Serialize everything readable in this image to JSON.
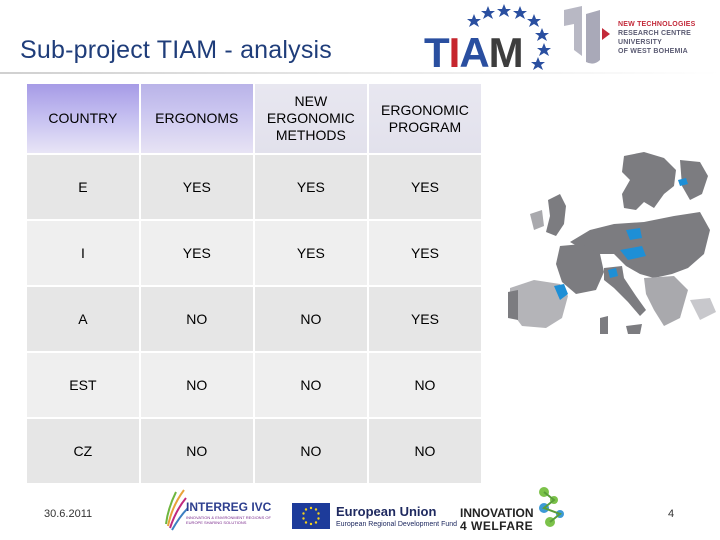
{
  "header": {
    "title": "Sub-project TIAM - analysis",
    "tiam_logo": {
      "t": "T",
      "i": "I",
      "a": "A",
      "m": "M"
    },
    "ntc_logo": {
      "line1": "NEW TECHNOLOGIES",
      "line2": "RESEARCH CENTRE",
      "line3": "UNIVERSITY",
      "line4": "OF WEST BOHEMIA"
    }
  },
  "table": {
    "headers": [
      "COUNTRY",
      "ERGONOMS",
      "NEW ERGONOMIC METHODS",
      "ERGONOMIC PROGRAM"
    ],
    "rows": [
      [
        "E",
        "YES",
        "YES",
        "YES"
      ],
      [
        "I",
        "YES",
        "YES",
        "YES"
      ],
      [
        "A",
        "NO",
        "NO",
        "YES"
      ],
      [
        "EST",
        "NO",
        "NO",
        "NO"
      ],
      [
        "CZ",
        "NO",
        "NO",
        "NO"
      ]
    ]
  },
  "colors": {
    "title": "#1f3d7a",
    "header_fill": "#c3bdf0",
    "row_fill": "#e6e6e6",
    "map_land": "#7c7c80",
    "map_highlight": "#1e8fd6"
  },
  "footer": {
    "date": "30.6.2011",
    "page": "4",
    "interreg": {
      "name": "INTERREG IVC",
      "sub": "INNOVATION & ENVIRONMENT REGIONS OF EUROPE SHARING SOLUTIONS"
    },
    "eu": {
      "name": "European Union",
      "fund": "European Regional Development Fund"
    },
    "innovation": {
      "top": "INNOVATION",
      "bottom": "4 WELFARE"
    }
  },
  "icons": [
    "tiam-stars-icon",
    "ntc-logo-icon",
    "europe-map-icon",
    "interreg-logo-icon",
    "eu-flag-icon",
    "innovation4welfare-logo-icon"
  ]
}
